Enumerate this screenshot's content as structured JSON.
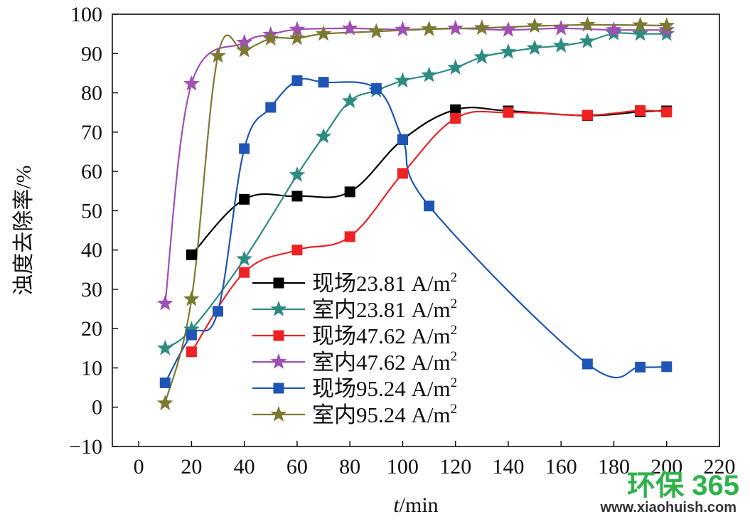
{
  "chart_data": {
    "type": "line",
    "title": "",
    "xlabel_italic": "t",
    "xlabel_rest": "/min",
    "ylabel": "浊度去除率/%",
    "xlim": [
      -10,
      220
    ],
    "ylim": [
      -10,
      100
    ],
    "xticks": [
      0,
      20,
      40,
      60,
      80,
      100,
      120,
      140,
      160,
      180,
      200,
      220
    ],
    "yticks": [
      -10,
      0,
      10,
      20,
      30,
      40,
      50,
      60,
      70,
      80,
      90,
      100
    ],
    "xtick_labels": [
      "0",
      "20",
      "40",
      "60",
      "80",
      "100",
      "120",
      "140",
      "160",
      "180",
      "200",
      "220"
    ],
    "ytick_labels": [
      "−10",
      "0",
      "10",
      "20",
      "30",
      "40",
      "50",
      "60",
      "70",
      "80",
      "90",
      "100"
    ],
    "grid": false,
    "legend_position": "bottom-center",
    "series": [
      {
        "name": "现场23.81 A/m",
        "sup": "2",
        "color": "#000000",
        "marker": "square",
        "x": [
          20,
          40,
          60,
          80,
          100,
          120,
          140,
          170,
          190,
          200
        ],
        "y": [
          38.8,
          52.9,
          53.7,
          54.8,
          68.1,
          75.7,
          75.4,
          74.2,
          75.2,
          75.4
        ]
      },
      {
        "name": "室内23.81 A/m",
        "sup": "2",
        "color": "#2e8b82",
        "marker": "star",
        "x": [
          10,
          20,
          40,
          60,
          70,
          80,
          90,
          100,
          110,
          120,
          130,
          140,
          150,
          160,
          170,
          180,
          190,
          200
        ],
        "y": [
          15.0,
          19.8,
          37.7,
          59.1,
          68.9,
          77.9,
          80.6,
          83.1,
          84.5,
          86.4,
          89.1,
          90.4,
          91.4,
          92.0,
          93.1,
          95.1,
          95.0,
          95.0
        ]
      },
      {
        "name": "现场47.62 A/m",
        "sup": "2",
        "color": "#ee2222",
        "marker": "square",
        "x": [
          20,
          40,
          60,
          80,
          100,
          120,
          140,
          170,
          190,
          200
        ],
        "y": [
          14.1,
          34.3,
          40.0,
          43.4,
          59.5,
          73.5,
          75.0,
          74.3,
          75.5,
          75.1
        ]
      },
      {
        "name": "室内47.62 A/m",
        "sup": "2",
        "color": "#a050b4",
        "marker": "star",
        "x": [
          10,
          20,
          40,
          50,
          60,
          80,
          100,
          120,
          140,
          160,
          180,
          200
        ],
        "y": [
          26.4,
          82.3,
          92.8,
          94.8,
          96.1,
          96.4,
          96.1,
          96.4,
          96.0,
          96.4,
          96.0,
          96.0
        ]
      },
      {
        "name": "现场95.24 A/m",
        "sup": "2",
        "color": "#1f55b4",
        "marker": "square",
        "x": [
          10,
          20,
          30,
          40,
          50,
          60,
          70,
          90,
          100,
          110,
          170,
          190,
          200
        ],
        "y": [
          6.2,
          18.4,
          24.4,
          65.8,
          76.3,
          83.1,
          82.7,
          81.1,
          68.1,
          51.2,
          11.0,
          10.2,
          10.3
        ]
      },
      {
        "name": "室内95.24 A/m",
        "sup": "2",
        "color": "#7b7a32",
        "marker": "star",
        "x": [
          10,
          20,
          30,
          40,
          50,
          60,
          70,
          90,
          110,
          130,
          150,
          170,
          190,
          200
        ],
        "y": [
          1.0,
          27.5,
          89.4,
          90.8,
          93.8,
          93.9,
          95.0,
          95.6,
          96.2,
          96.5,
          97.0,
          97.3,
          97.2,
          97.1
        ]
      }
    ]
  },
  "watermark": {
    "logo_text": "环保 365",
    "url": "www.xiaohuish.com",
    "color": "#2fb24a"
  }
}
